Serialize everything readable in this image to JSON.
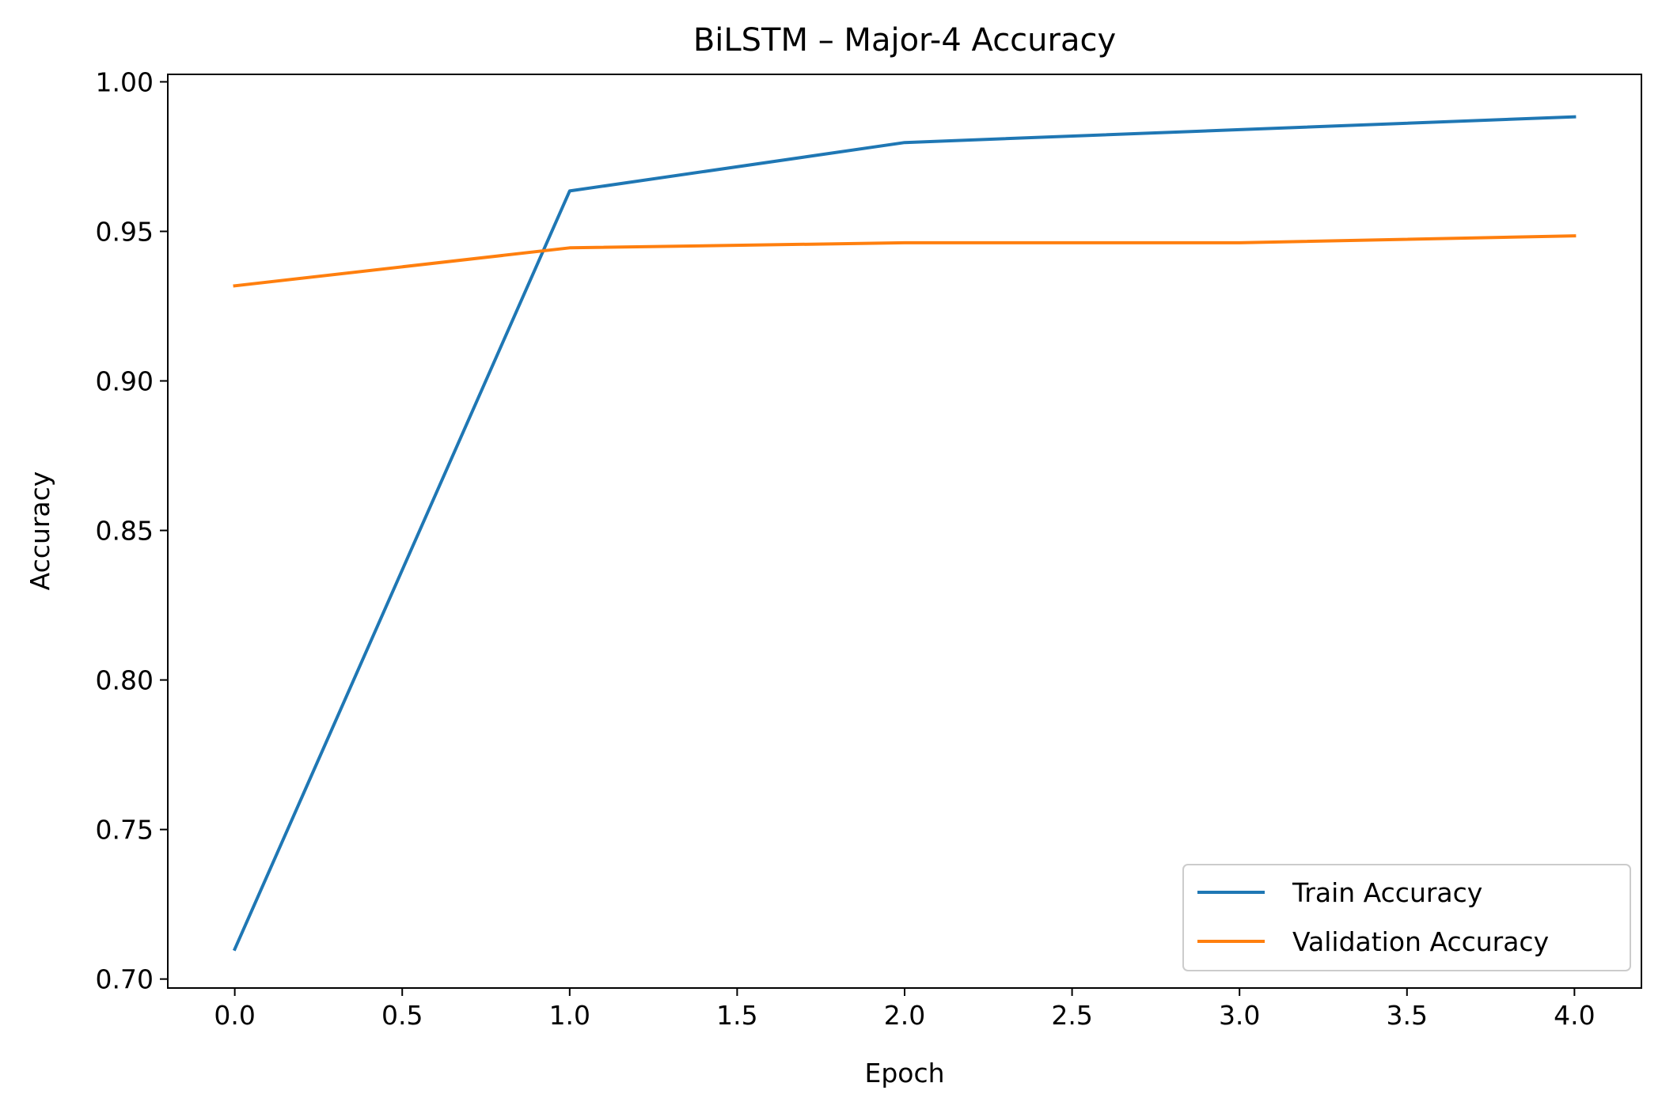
{
  "chart_data": {
    "type": "line",
    "title": "BiLSTM – Major-4 Accuracy",
    "xlabel": "Epoch",
    "ylabel": "Accuracy",
    "x": [
      0,
      1,
      2,
      3,
      4
    ],
    "xlim": [
      -0.2,
      4.2
    ],
    "ylim": [
      0.697,
      1.0025
    ],
    "xticks": [
      0.0,
      0.5,
      1.0,
      1.5,
      2.0,
      2.5,
      3.0,
      3.5,
      4.0
    ],
    "xtick_labels": [
      "0.0",
      "0.5",
      "1.0",
      "1.5",
      "2.0",
      "2.5",
      "3.0",
      "3.5",
      "4.0"
    ],
    "yticks": [
      0.7,
      0.75,
      0.8,
      0.85,
      0.9,
      0.95,
      1.0
    ],
    "ytick_labels": [
      "0.70",
      "0.75",
      "0.80",
      "0.85",
      "0.90",
      "0.95",
      "1.00"
    ],
    "grid": false,
    "legend_position": "lower-right",
    "series": [
      {
        "name": "Train Accuracy",
        "color": "#1f77b4",
        "values": [
          0.71,
          0.9635,
          0.9797,
          0.984,
          0.9883
        ]
      },
      {
        "name": "Validation Accuracy",
        "color": "#ff7f0e",
        "values": [
          0.9318,
          0.9445,
          0.9462,
          0.9462,
          0.9485
        ]
      }
    ]
  }
}
